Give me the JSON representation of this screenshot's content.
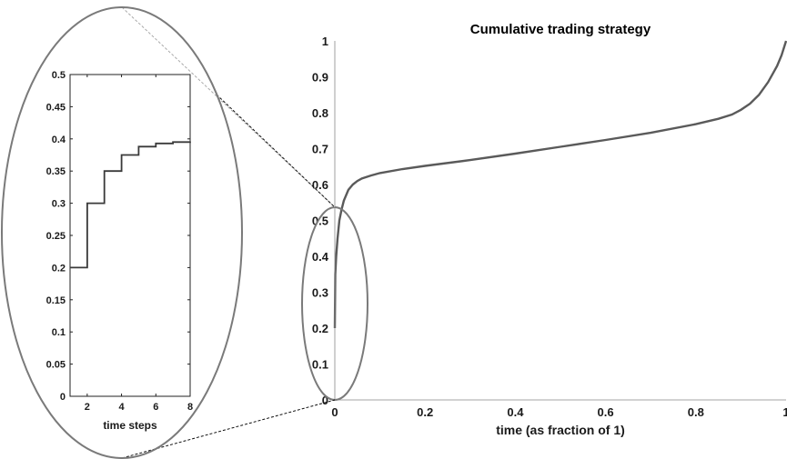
{
  "chart_data": [
    {
      "id": "main",
      "type": "line",
      "title": "Cumulative trading strategy",
      "xlabel": "time (as fraction of 1)",
      "ylabel": "",
      "xlim": [
        0,
        1
      ],
      "ylim": [
        0,
        1
      ],
      "xticks": [
        "0",
        "0.2",
        "0.4",
        "0.6",
        "0.8",
        "1"
      ],
      "yticks": [
        "0",
        "0.1",
        "0.2",
        "0.3",
        "0.4",
        "0.5",
        "0.6",
        "0.7",
        "0.8",
        "0.9",
        "1"
      ],
      "grid": false,
      "line_color": "#5a5a5a",
      "series": [
        {
          "x": [
            0,
            0.001,
            0.003,
            0.006,
            0.01,
            0.015,
            0.02,
            0.03,
            0.04,
            0.05,
            0.06,
            0.08,
            0.1,
            0.15,
            0.2,
            0.3,
            0.4,
            0.5,
            0.6,
            0.7,
            0.8,
            0.85,
            0.88,
            0.9,
            0.92,
            0.94,
            0.96,
            0.98,
            0.99,
            1.0
          ],
          "y": [
            0.2,
            0.35,
            0.4,
            0.45,
            0.5,
            0.53,
            0.555,
            0.585,
            0.6,
            0.61,
            0.617,
            0.625,
            0.632,
            0.643,
            0.652,
            0.668,
            0.686,
            0.705,
            0.724,
            0.744,
            0.768,
            0.783,
            0.795,
            0.808,
            0.825,
            0.85,
            0.885,
            0.93,
            0.96,
            1.0
          ]
        }
      ]
    },
    {
      "id": "inset",
      "type": "line",
      "title": "",
      "xlabel": "time steps",
      "ylabel": "",
      "xlim": [
        1,
        8
      ],
      "ylim": [
        0,
        0.5
      ],
      "xticks": [
        "2",
        "4",
        "6",
        "8"
      ],
      "yticks": [
        "0",
        "0.05",
        "0.1",
        "0.15",
        "0.2",
        "0.25",
        "0.3",
        "0.35",
        "0.4",
        "0.45",
        "0.5"
      ],
      "grid": false,
      "line_color": "#3a3a3a",
      "step": true,
      "series": [
        {
          "x": [
            1,
            2,
            3,
            4,
            5,
            6,
            7,
            8
          ],
          "y": [
            0.2,
            0.3,
            0.35,
            0.375,
            0.388,
            0.393,
            0.395,
            0.396
          ]
        }
      ]
    }
  ]
}
